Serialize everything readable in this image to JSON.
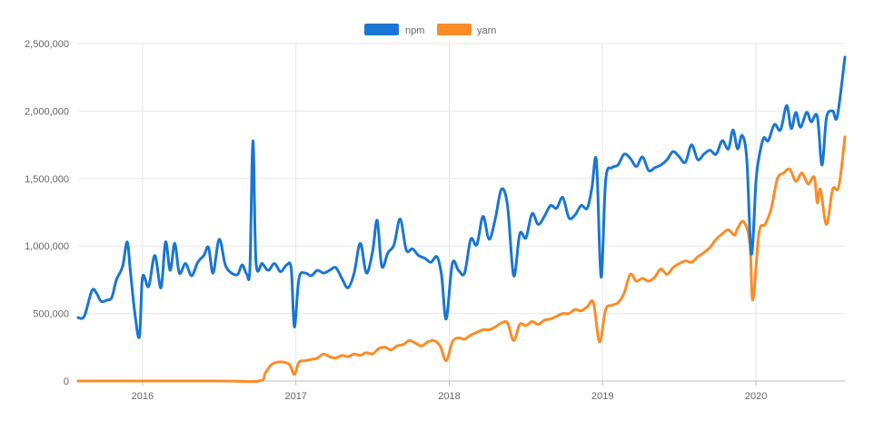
{
  "chart_data": {
    "type": "line",
    "title": "",
    "xlabel": "",
    "ylabel": "",
    "ylim": [
      0,
      2500000
    ],
    "y_ticks": [
      0,
      500000,
      1000000,
      1500000,
      2000000,
      2500000
    ],
    "y_tick_labels": [
      "0",
      "500,000",
      "1,000,000",
      "1,500,000",
      "2,000,000",
      "2,500,000"
    ],
    "xlim": [
      2015.58,
      2020.58
    ],
    "x_ticks": [
      2016,
      2017,
      2018,
      2019,
      2020
    ],
    "x_tick_labels": [
      "2016",
      "2017",
      "2018",
      "2019",
      "2020"
    ],
    "grid": true,
    "legend": "top-center",
    "series": [
      {
        "name": "npm",
        "color": "#1976d2",
        "points": [
          [
            2015.58,
            470000
          ],
          [
            2015.62,
            480000
          ],
          [
            2015.67,
            670000
          ],
          [
            2015.7,
            650000
          ],
          [
            2015.73,
            590000
          ],
          [
            2015.77,
            600000
          ],
          [
            2015.8,
            620000
          ],
          [
            2015.83,
            750000
          ],
          [
            2015.87,
            850000
          ],
          [
            2015.9,
            1030000
          ],
          [
            2015.92,
            820000
          ],
          [
            2015.95,
            500000
          ],
          [
            2015.98,
            330000
          ],
          [
            2016.0,
            770000
          ],
          [
            2016.04,
            700000
          ],
          [
            2016.08,
            930000
          ],
          [
            2016.12,
            690000
          ],
          [
            2016.15,
            1030000
          ],
          [
            2016.18,
            820000
          ],
          [
            2016.21,
            1020000
          ],
          [
            2016.24,
            800000
          ],
          [
            2016.28,
            870000
          ],
          [
            2016.32,
            780000
          ],
          [
            2016.36,
            880000
          ],
          [
            2016.4,
            930000
          ],
          [
            2016.43,
            990000
          ],
          [
            2016.46,
            800000
          ],
          [
            2016.5,
            1050000
          ],
          [
            2016.54,
            860000
          ],
          [
            2016.58,
            800000
          ],
          [
            2016.62,
            790000
          ],
          [
            2016.65,
            860000
          ],
          [
            2016.68,
            790000
          ],
          [
            2016.7,
            840000
          ],
          [
            2016.72,
            1780000
          ],
          [
            2016.74,
            880000
          ],
          [
            2016.78,
            870000
          ],
          [
            2016.82,
            820000
          ],
          [
            2016.86,
            870000
          ],
          [
            2016.9,
            810000
          ],
          [
            2016.94,
            860000
          ],
          [
            2016.97,
            830000
          ],
          [
            2016.99,
            400000
          ],
          [
            2017.02,
            760000
          ],
          [
            2017.06,
            800000
          ],
          [
            2017.1,
            780000
          ],
          [
            2017.14,
            820000
          ],
          [
            2017.18,
            800000
          ],
          [
            2017.22,
            820000
          ],
          [
            2017.26,
            840000
          ],
          [
            2017.3,
            760000
          ],
          [
            2017.34,
            690000
          ],
          [
            2017.38,
            800000
          ],
          [
            2017.42,
            1020000
          ],
          [
            2017.46,
            800000
          ],
          [
            2017.5,
            960000
          ],
          [
            2017.53,
            1190000
          ],
          [
            2017.56,
            850000
          ],
          [
            2017.6,
            950000
          ],
          [
            2017.64,
            1010000
          ],
          [
            2017.68,
            1200000
          ],
          [
            2017.72,
            970000
          ],
          [
            2017.76,
            980000
          ],
          [
            2017.8,
            930000
          ],
          [
            2017.84,
            910000
          ],
          [
            2017.88,
            880000
          ],
          [
            2017.92,
            920000
          ],
          [
            2017.95,
            780000
          ],
          [
            2017.98,
            460000
          ],
          [
            2018.02,
            870000
          ],
          [
            2018.06,
            820000
          ],
          [
            2018.1,
            800000
          ],
          [
            2018.14,
            1050000
          ],
          [
            2018.18,
            1010000
          ],
          [
            2018.22,
            1220000
          ],
          [
            2018.26,
            1050000
          ],
          [
            2018.3,
            1200000
          ],
          [
            2018.34,
            1420000
          ],
          [
            2018.38,
            1300000
          ],
          [
            2018.42,
            780000
          ],
          [
            2018.46,
            1090000
          ],
          [
            2018.5,
            1060000
          ],
          [
            2018.54,
            1240000
          ],
          [
            2018.58,
            1160000
          ],
          [
            2018.62,
            1220000
          ],
          [
            2018.66,
            1300000
          ],
          [
            2018.7,
            1280000
          ],
          [
            2018.74,
            1360000
          ],
          [
            2018.78,
            1210000
          ],
          [
            2018.82,
            1230000
          ],
          [
            2018.86,
            1300000
          ],
          [
            2018.9,
            1280000
          ],
          [
            2018.93,
            1430000
          ],
          [
            2018.96,
            1630000
          ],
          [
            2018.99,
            770000
          ],
          [
            2019.02,
            1490000
          ],
          [
            2019.06,
            1580000
          ],
          [
            2019.1,
            1600000
          ],
          [
            2019.14,
            1680000
          ],
          [
            2019.18,
            1650000
          ],
          [
            2019.22,
            1590000
          ],
          [
            2019.26,
            1660000
          ],
          [
            2019.3,
            1560000
          ],
          [
            2019.34,
            1580000
          ],
          [
            2019.38,
            1600000
          ],
          [
            2019.42,
            1640000
          ],
          [
            2019.46,
            1700000
          ],
          [
            2019.5,
            1660000
          ],
          [
            2019.54,
            1620000
          ],
          [
            2019.58,
            1750000
          ],
          [
            2019.62,
            1640000
          ],
          [
            2019.66,
            1680000
          ],
          [
            2019.7,
            1710000
          ],
          [
            2019.74,
            1680000
          ],
          [
            2019.78,
            1780000
          ],
          [
            2019.82,
            1720000
          ],
          [
            2019.85,
            1860000
          ],
          [
            2019.88,
            1720000
          ],
          [
            2019.91,
            1820000
          ],
          [
            2019.94,
            1640000
          ],
          [
            2019.97,
            940000
          ],
          [
            2020.0,
            1480000
          ],
          [
            2020.02,
            1660000
          ],
          [
            2020.05,
            1800000
          ],
          [
            2020.08,
            1780000
          ],
          [
            2020.12,
            1900000
          ],
          [
            2020.16,
            1860000
          ],
          [
            2020.2,
            2040000
          ],
          [
            2020.23,
            1870000
          ],
          [
            2020.26,
            1990000
          ],
          [
            2020.29,
            1880000
          ],
          [
            2020.33,
            1990000
          ],
          [
            2020.36,
            1920000
          ],
          [
            2020.4,
            1960000
          ],
          [
            2020.43,
            1600000
          ],
          [
            2020.46,
            1950000
          ],
          [
            2020.5,
            2000000
          ],
          [
            2020.53,
            1960000
          ],
          [
            2020.58,
            2400000
          ]
        ]
      },
      {
        "name": "yarn",
        "color": "#fb8c26",
        "points": [
          [
            2015.58,
            0
          ],
          [
            2016.5,
            0
          ],
          [
            2016.76,
            0
          ],
          [
            2016.8,
            60000
          ],
          [
            2016.84,
            120000
          ],
          [
            2016.88,
            140000
          ],
          [
            2016.92,
            140000
          ],
          [
            2016.96,
            120000
          ],
          [
            2016.99,
            50000
          ],
          [
            2017.02,
            140000
          ],
          [
            2017.06,
            150000
          ],
          [
            2017.1,
            160000
          ],
          [
            2017.14,
            170000
          ],
          [
            2017.18,
            200000
          ],
          [
            2017.22,
            180000
          ],
          [
            2017.26,
            170000
          ],
          [
            2017.3,
            190000
          ],
          [
            2017.34,
            180000
          ],
          [
            2017.38,
            200000
          ],
          [
            2017.42,
            190000
          ],
          [
            2017.46,
            210000
          ],
          [
            2017.5,
            200000
          ],
          [
            2017.54,
            240000
          ],
          [
            2017.58,
            250000
          ],
          [
            2017.62,
            230000
          ],
          [
            2017.66,
            260000
          ],
          [
            2017.7,
            270000
          ],
          [
            2017.74,
            300000
          ],
          [
            2017.78,
            280000
          ],
          [
            2017.82,
            260000
          ],
          [
            2017.86,
            290000
          ],
          [
            2017.9,
            300000
          ],
          [
            2017.94,
            260000
          ],
          [
            2017.98,
            150000
          ],
          [
            2018.02,
            290000
          ],
          [
            2018.06,
            320000
          ],
          [
            2018.1,
            310000
          ],
          [
            2018.14,
            340000
          ],
          [
            2018.18,
            360000
          ],
          [
            2018.22,
            380000
          ],
          [
            2018.26,
            380000
          ],
          [
            2018.3,
            400000
          ],
          [
            2018.34,
            430000
          ],
          [
            2018.38,
            430000
          ],
          [
            2018.42,
            300000
          ],
          [
            2018.46,
            420000
          ],
          [
            2018.5,
            410000
          ],
          [
            2018.54,
            440000
          ],
          [
            2018.58,
            420000
          ],
          [
            2018.62,
            450000
          ],
          [
            2018.66,
            460000
          ],
          [
            2018.7,
            480000
          ],
          [
            2018.74,
            500000
          ],
          [
            2018.78,
            500000
          ],
          [
            2018.82,
            530000
          ],
          [
            2018.86,
            520000
          ],
          [
            2018.9,
            550000
          ],
          [
            2018.94,
            580000
          ],
          [
            2018.98,
            290000
          ],
          [
            2019.02,
            530000
          ],
          [
            2019.06,
            560000
          ],
          [
            2019.1,
            580000
          ],
          [
            2019.14,
            650000
          ],
          [
            2019.18,
            790000
          ],
          [
            2019.22,
            740000
          ],
          [
            2019.26,
            760000
          ],
          [
            2019.3,
            740000
          ],
          [
            2019.34,
            770000
          ],
          [
            2019.38,
            830000
          ],
          [
            2019.42,
            790000
          ],
          [
            2019.46,
            840000
          ],
          [
            2019.5,
            870000
          ],
          [
            2019.54,
            890000
          ],
          [
            2019.58,
            880000
          ],
          [
            2019.62,
            920000
          ],
          [
            2019.66,
            950000
          ],
          [
            2019.7,
            990000
          ],
          [
            2019.74,
            1050000
          ],
          [
            2019.78,
            1090000
          ],
          [
            2019.82,
            1120000
          ],
          [
            2019.86,
            1080000
          ],
          [
            2019.88,
            1130000
          ],
          [
            2019.92,
            1180000
          ],
          [
            2019.96,
            1020000
          ],
          [
            2019.98,
            600000
          ],
          [
            2020.02,
            1100000
          ],
          [
            2020.06,
            1160000
          ],
          [
            2020.1,
            1280000
          ],
          [
            2020.14,
            1500000
          ],
          [
            2020.18,
            1540000
          ],
          [
            2020.22,
            1570000
          ],
          [
            2020.26,
            1480000
          ],
          [
            2020.3,
            1540000
          ],
          [
            2020.34,
            1460000
          ],
          [
            2020.38,
            1510000
          ],
          [
            2020.4,
            1320000
          ],
          [
            2020.42,
            1420000
          ],
          [
            2020.46,
            1160000
          ],
          [
            2020.5,
            1420000
          ],
          [
            2020.54,
            1440000
          ],
          [
            2020.58,
            1810000
          ]
        ]
      }
    ]
  }
}
